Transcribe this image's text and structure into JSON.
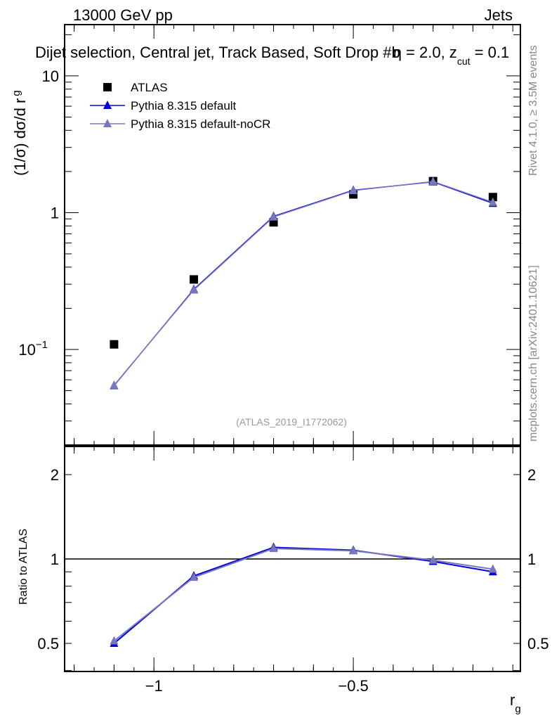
{
  "header": {
    "left": "13000 GeV pp",
    "right": "Jets"
  },
  "title": "Dijet selection, Central jet, Track Based, Soft Drop #b",
  "title_suffix": "η = 2.0, z",
  "title_sub": "cut",
  "title_end": " = 0.1",
  "side_label_top": "Rivet 4.1.0, ≥ 3.5M events",
  "side_label_bottom": "mcplots.cern.ch [arXiv:2401.10621]",
  "watermark": "(ATLAS_2019_I1772062)",
  "chart_data": [
    {
      "type": "scatter",
      "ylabel": "(1/σ) dσ/d r",
      "ylabel_sub": "g",
      "yscale": "log",
      "ylim": [
        0.02,
        23.7
      ],
      "xlim": [
        -1.224,
        -0.081
      ],
      "yticks": [
        {
          "v": 10,
          "label": "10"
        },
        {
          "v": 1,
          "label": "1"
        },
        {
          "v": 0.1,
          "label": "10",
          "sup": "−1"
        }
      ],
      "legend_placement": "top-left",
      "x": [
        -1.1,
        -0.9,
        -0.7,
        -0.5,
        -0.3,
        -0.15
      ],
      "series": [
        {
          "name": "ATLAS",
          "color": "#000000",
          "marker": "square",
          "values": [
            0.109,
            0.325,
            0.85,
            1.36,
            1.7,
            1.3
          ]
        },
        {
          "name": "Pythia 8.315 default",
          "color": "#0000dd",
          "marker": "triangle",
          "values": [
            0.0544,
            0.275,
            0.94,
            1.46,
            1.68,
            1.17
          ]
        },
        {
          "name": "Pythia 8.315 default-noCR",
          "color": "#7777bb",
          "marker": "triangle",
          "values": [
            0.0548,
            0.272,
            0.93,
            1.45,
            1.69,
            1.19
          ]
        }
      ]
    },
    {
      "type": "line",
      "ylabel": "Ratio to ATLAS",
      "xlabel": "r",
      "xlabel_sub": "g",
      "yscale": "log",
      "ylim": [
        0.397,
        2.52
      ],
      "xlim": [
        -1.224,
        -0.081
      ],
      "yticks": [
        {
          "v": 2,
          "label": "2"
        },
        {
          "v": 1,
          "label": "1"
        },
        {
          "v": 0.5,
          "label": "0.5"
        }
      ],
      "xticks": [
        {
          "v": -1,
          "label": "−1"
        },
        {
          "v": -0.5,
          "label": "−0.5"
        }
      ],
      "x": [
        -1.1,
        -0.9,
        -0.7,
        -0.5,
        -0.3,
        -0.15
      ],
      "series": [
        {
          "name": "Pythia 8.315 default",
          "color": "#0000dd",
          "values": [
            0.5,
            0.87,
            1.1,
            1.075,
            0.98,
            0.9
          ]
        },
        {
          "name": "Pythia 8.315 default-noCR",
          "color": "#7777bb",
          "values": [
            0.51,
            0.86,
            1.09,
            1.07,
            0.99,
            0.92
          ]
        }
      ]
    }
  ]
}
